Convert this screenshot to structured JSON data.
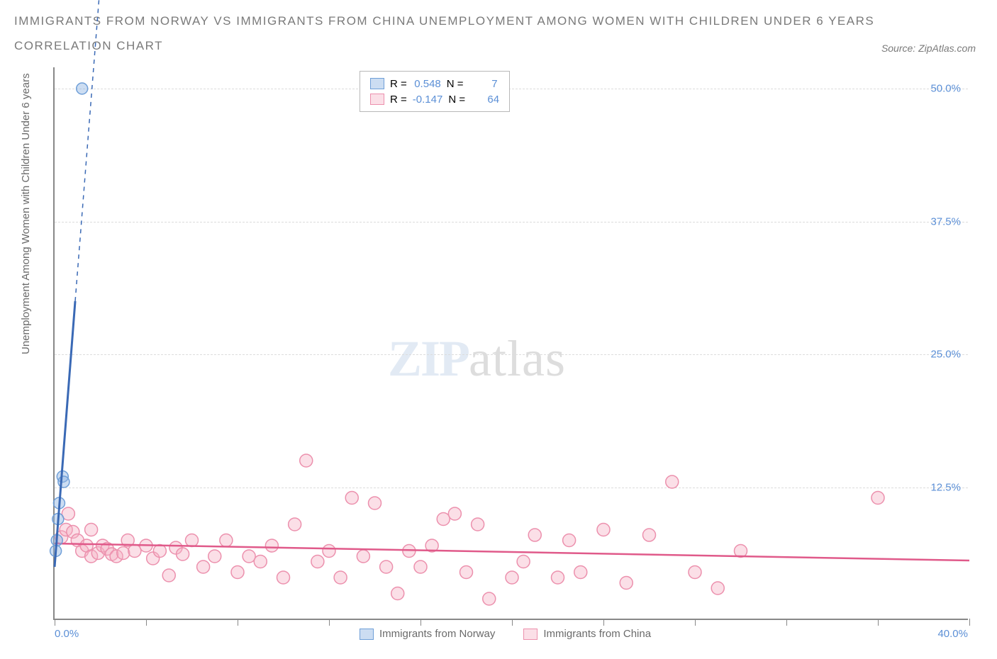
{
  "title_line1": "IMMIGRANTS FROM NORWAY VS IMMIGRANTS FROM CHINA UNEMPLOYMENT AMONG WOMEN WITH CHILDREN UNDER 6 YEARS",
  "title_line2": "CORRELATION CHART",
  "source_label": "Source: ZipAtlas.com",
  "ylabel": "Unemployment Among Women with Children Under 6 years",
  "watermark_zip": "ZIP",
  "watermark_atlas": "atlas",
  "stats_legend": {
    "row1": {
      "r_label": "R =",
      "r_value": "0.548",
      "n_label": "N =",
      "n_value": "7"
    },
    "row2": {
      "r_label": "R =",
      "r_value": "-0.147",
      "n_label": "N =",
      "n_value": "64"
    }
  },
  "bottom_legend": {
    "series1": "Immigrants from Norway",
    "series2": "Immigrants from China"
  },
  "chart": {
    "type": "scatter",
    "xlim": [
      0,
      40
    ],
    "ylim": [
      0,
      52
    ],
    "xtick_label_left": "0.0%",
    "xtick_label_right": "40.0%",
    "xtick_positions": [
      0,
      4,
      8,
      12,
      16,
      20,
      24,
      28,
      32,
      36,
      40
    ],
    "ytick_labels": [
      "12.5%",
      "25.0%",
      "37.5%",
      "50.0%"
    ],
    "ytick_positions": [
      12.5,
      25.0,
      37.5,
      50.0
    ],
    "background_color": "#ffffff",
    "grid_color": "#dcdcdc",
    "axis_color": "#888888",
    "series": {
      "norway": {
        "color_fill": "rgba(141,180,226,0.45)",
        "color_stroke": "#6f9fd8",
        "trend_color": "#3a69b5",
        "marker_radius": 8,
        "trend": {
          "x1": 0,
          "y1": 5,
          "x2": 0.9,
          "y2": 30,
          "dash_x2": 2.0,
          "dash_y2": 60
        },
        "points": [
          {
            "x": 0.05,
            "y": 6.5
          },
          {
            "x": 0.1,
            "y": 7.5
          },
          {
            "x": 0.15,
            "y": 9.5
          },
          {
            "x": 0.2,
            "y": 11.0
          },
          {
            "x": 0.35,
            "y": 13.5
          },
          {
            "x": 0.4,
            "y": 13.0
          },
          {
            "x": 1.2,
            "y": 50.0
          }
        ]
      },
      "china": {
        "color_fill": "rgba(244,176,196,0.4)",
        "color_stroke": "#ec90ad",
        "trend_color": "#e05a8a",
        "marker_radius": 9,
        "trend": {
          "x1": 0,
          "y1": 7.2,
          "x2": 40,
          "y2": 5.6
        },
        "points": [
          {
            "x": 0.3,
            "y": 7.8
          },
          {
            "x": 0.5,
            "y": 8.5
          },
          {
            "x": 0.6,
            "y": 10.0
          },
          {
            "x": 0.8,
            "y": 8.3
          },
          {
            "x": 1.0,
            "y": 7.5
          },
          {
            "x": 1.2,
            "y": 6.5
          },
          {
            "x": 1.4,
            "y": 7.0
          },
          {
            "x": 1.6,
            "y": 6.0
          },
          {
            "x": 1.6,
            "y": 8.5
          },
          {
            "x": 1.9,
            "y": 6.3
          },
          {
            "x": 2.1,
            "y": 7.0
          },
          {
            "x": 2.3,
            "y": 6.7
          },
          {
            "x": 2.5,
            "y": 6.2
          },
          {
            "x": 2.7,
            "y": 6.0
          },
          {
            "x": 3.0,
            "y": 6.3
          },
          {
            "x": 3.2,
            "y": 7.5
          },
          {
            "x": 3.5,
            "y": 6.5
          },
          {
            "x": 4.0,
            "y": 7.0
          },
          {
            "x": 4.3,
            "y": 5.8
          },
          {
            "x": 4.6,
            "y": 6.5
          },
          {
            "x": 5.0,
            "y": 4.2
          },
          {
            "x": 5.3,
            "y": 6.8
          },
          {
            "x": 5.6,
            "y": 6.2
          },
          {
            "x": 6.0,
            "y": 7.5
          },
          {
            "x": 6.5,
            "y": 5.0
          },
          {
            "x": 7.0,
            "y": 6.0
          },
          {
            "x": 7.5,
            "y": 7.5
          },
          {
            "x": 8.0,
            "y": 4.5
          },
          {
            "x": 8.5,
            "y": 6.0
          },
          {
            "x": 9.0,
            "y": 5.5
          },
          {
            "x": 9.5,
            "y": 7.0
          },
          {
            "x": 10.0,
            "y": 4.0
          },
          {
            "x": 10.5,
            "y": 9.0
          },
          {
            "x": 11.0,
            "y": 15.0
          },
          {
            "x": 11.5,
            "y": 5.5
          },
          {
            "x": 12.0,
            "y": 6.5
          },
          {
            "x": 12.5,
            "y": 4.0
          },
          {
            "x": 13.0,
            "y": 11.5
          },
          {
            "x": 13.5,
            "y": 6.0
          },
          {
            "x": 14.0,
            "y": 11.0
          },
          {
            "x": 14.5,
            "y": 5.0
          },
          {
            "x": 15.0,
            "y": 2.5
          },
          {
            "x": 15.5,
            "y": 6.5
          },
          {
            "x": 16.0,
            "y": 5.0
          },
          {
            "x": 16.5,
            "y": 7.0
          },
          {
            "x": 17.0,
            "y": 9.5
          },
          {
            "x": 17.5,
            "y": 10.0
          },
          {
            "x": 18.0,
            "y": 4.5
          },
          {
            "x": 18.5,
            "y": 9.0
          },
          {
            "x": 19.0,
            "y": 2.0
          },
          {
            "x": 20.0,
            "y": 4.0
          },
          {
            "x": 20.5,
            "y": 5.5
          },
          {
            "x": 21.0,
            "y": 8.0
          },
          {
            "x": 22.0,
            "y": 4.0
          },
          {
            "x": 22.5,
            "y": 7.5
          },
          {
            "x": 23.0,
            "y": 4.5
          },
          {
            "x": 24.0,
            "y": 8.5
          },
          {
            "x": 25.0,
            "y": 3.5
          },
          {
            "x": 26.0,
            "y": 8.0
          },
          {
            "x": 27.0,
            "y": 13.0
          },
          {
            "x": 28.0,
            "y": 4.5
          },
          {
            "x": 29.0,
            "y": 3.0
          },
          {
            "x": 30.0,
            "y": 6.5
          },
          {
            "x": 36.0,
            "y": 11.5
          }
        ]
      }
    }
  }
}
